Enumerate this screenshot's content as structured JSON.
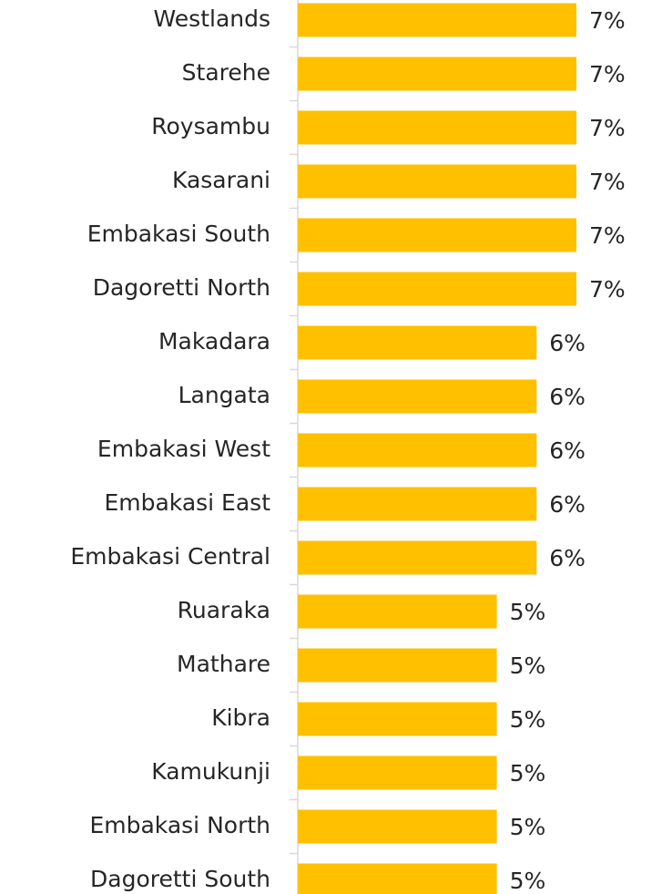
{
  "chart_data": {
    "type": "bar",
    "orientation": "horizontal",
    "categories": [
      "Westlands",
      "Starehe",
      "Roysambu",
      "Kasarani",
      "Embakasi South",
      "Dagoretti North",
      "Makadara",
      "Langata",
      "Embakasi West",
      "Embakasi East",
      "Embakasi Central",
      "Ruaraka",
      "Mathare",
      "Kibra",
      "Kamukunji",
      "Embakasi North",
      "Dagoretti South"
    ],
    "values": [
      7,
      7,
      7,
      7,
      7,
      7,
      6,
      6,
      6,
      6,
      6,
      5,
      5,
      5,
      5,
      5,
      5
    ],
    "value_labels": [
      "7%",
      "7%",
      "7%",
      "7%",
      "7%",
      "7%",
      "6%",
      "6%",
      "6%",
      "6%",
      "6%",
      "5%",
      "5%",
      "5%",
      "5%",
      "5%",
      "5%"
    ],
    "color": "#FFC000"
  }
}
